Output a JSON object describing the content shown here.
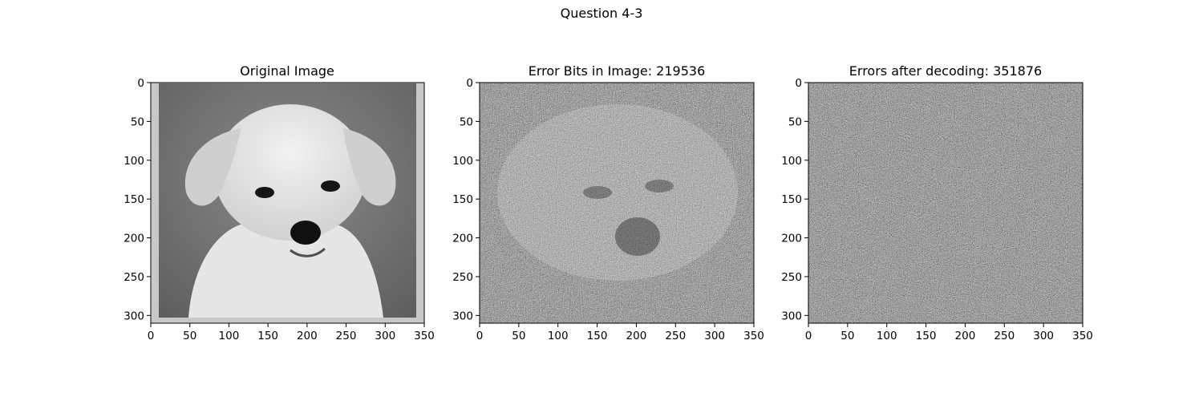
{
  "figure": {
    "suptitle": "Question 4-3"
  },
  "panels": [
    {
      "title": "Original Image",
      "image_kind": "photo of a puppy (grayscale)",
      "x_ticks": [
        "0",
        "50",
        "100",
        "150",
        "200",
        "250",
        "300",
        "350"
      ],
      "y_ticks": [
        "0",
        "50",
        "100",
        "150",
        "200",
        "250",
        "300"
      ],
      "x_range": [
        0,
        350
      ],
      "y_range": [
        0,
        310
      ]
    },
    {
      "title": "Error Bits in Image: 219536",
      "image_kind": "noisy grayscale image with faint puppy outline",
      "x_ticks": [
        "0",
        "50",
        "100",
        "150",
        "200",
        "250",
        "300",
        "350"
      ],
      "y_ticks": [
        "0",
        "50",
        "100",
        "150",
        "200",
        "250",
        "300"
      ],
      "x_range": [
        0,
        350
      ],
      "y_range": [
        0,
        310
      ]
    },
    {
      "title": "Errors after decoding: 351876",
      "image_kind": "uniform grayscale noise",
      "x_ticks": [
        "0",
        "50",
        "100",
        "150",
        "200",
        "250",
        "300",
        "350"
      ],
      "y_ticks": [
        "0",
        "50",
        "100",
        "150",
        "200",
        "250",
        "300"
      ],
      "x_range": [
        0,
        350
      ],
      "y_range": [
        0,
        310
      ]
    }
  ],
  "colors": {
    "frame": "#000000",
    "border_gray": "#c8c8c8",
    "background_gray": "#7a7a7a"
  }
}
